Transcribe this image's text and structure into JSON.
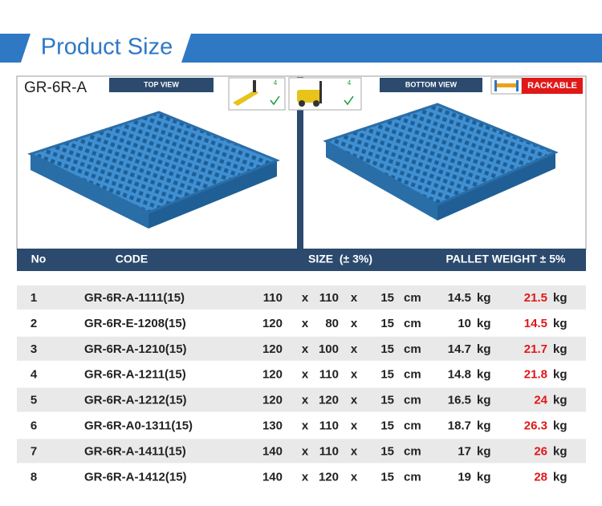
{
  "header": {
    "title": "Product Size"
  },
  "panel": {
    "model": "GR-6R-A",
    "top_view": "TOP VIEW",
    "bottom_view": "BOTTOM VIEW",
    "hand_pallet_ways": "4",
    "forklift_ways": "4",
    "rackable": "RACKABLE"
  },
  "table": {
    "columns": [
      "No",
      "CODE",
      "SIZE  (± 3%)",
      "PALLET WEIGHT ± 5%"
    ],
    "separator": "x",
    "size_unit": "cm",
    "weight_unit": "kg",
    "rows": [
      [
        1,
        "GR-6R-A-1111(15)",
        110,
        110,
        15,
        14.5,
        21.5
      ],
      [
        2,
        "GR-6R-E-1208(15)",
        120,
        80,
        15,
        10,
        14.5
      ],
      [
        3,
        "GR-6R-A-1210(15)",
        120,
        100,
        15,
        14.7,
        21.7
      ],
      [
        4,
        "GR-6R-A-1211(15)",
        120,
        110,
        15,
        14.8,
        21.8
      ],
      [
        5,
        "GR-6R-A-1212(15)",
        120,
        120,
        15,
        16.5,
        24
      ],
      [
        6,
        "GR-6R-A0-1311(15)",
        130,
        110,
        15,
        18.7,
        26.3
      ],
      [
        7,
        "GR-6R-A-1411(15)",
        140,
        110,
        15,
        17,
        26
      ],
      [
        8,
        "GR-6R-A-1412(15)",
        140,
        120,
        15,
        19,
        28
      ]
    ]
  }
}
